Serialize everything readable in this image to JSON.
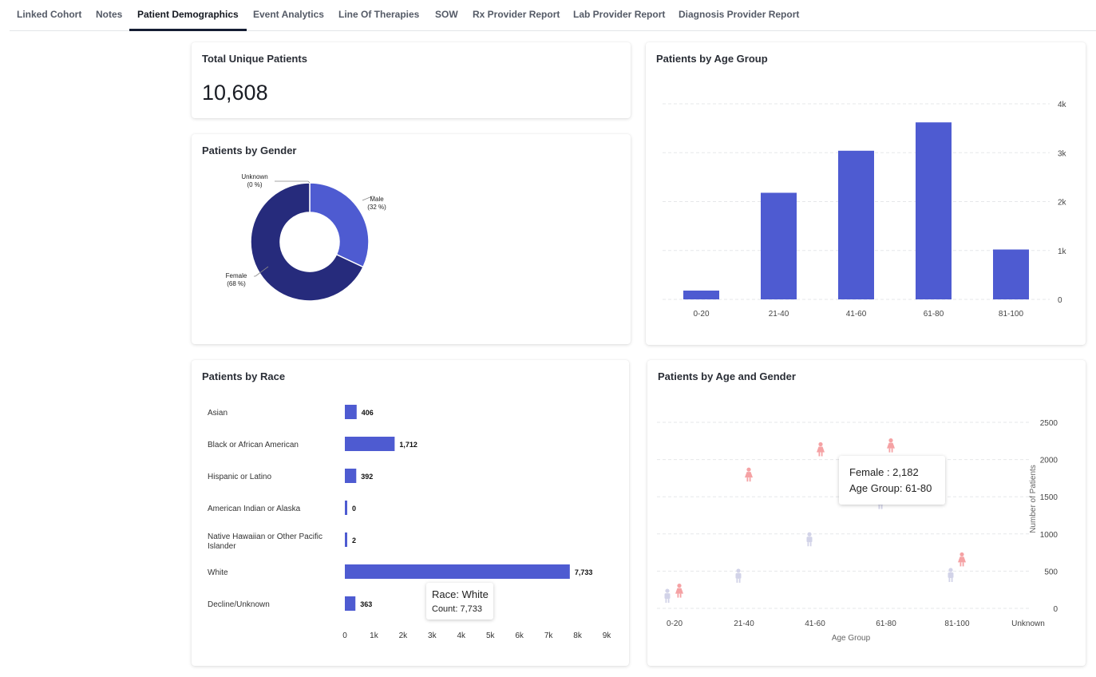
{
  "tabs": [
    {
      "label": "Linked Cohort",
      "active": false
    },
    {
      "label": "Notes",
      "active": false
    },
    {
      "label": "Patient Demographics",
      "active": true
    },
    {
      "label": "Event Analytics",
      "active": false
    },
    {
      "label": "Line Of Therapies",
      "active": false
    },
    {
      "label": "SOW",
      "active": false
    },
    {
      "label": "Rx Provider Report",
      "active": false
    },
    {
      "label": "Lab Provider Report",
      "active": false
    },
    {
      "label": "Diagnosis Provider Report",
      "active": false
    }
  ],
  "total_unique": {
    "title": "Total Unique Patients",
    "value": "10,608"
  },
  "gender_card": {
    "title": "Patients by Gender"
  },
  "age_group_card": {
    "title": "Patients by Age Group"
  },
  "race_card": {
    "title": "Patients by Race"
  },
  "age_gender_card": {
    "title": "Patients by Age and Gender"
  },
  "colors": {
    "bar": "#4e5bd1",
    "female_slice": "#262b7c",
    "male_slice": "#4e5bd1",
    "female_icon": "#f5a2a4",
    "male_icon": "#d2d3e8",
    "grid": "#e6e7ea"
  },
  "chart_data": [
    {
      "type": "pie",
      "donut": true,
      "slices": [
        {
          "label": "Male",
          "pct_label": "(32 %)",
          "value": 32
        },
        {
          "label": "Female",
          "pct_label": "(68 %)",
          "value": 68
        },
        {
          "label": "Unknown",
          "pct_label": "(0 %)",
          "value": 0
        }
      ]
    },
    {
      "type": "bar",
      "categories": [
        "0-20",
        "21-40",
        "41-60",
        "61-80",
        "81-100"
      ],
      "values": [
        180,
        2180,
        3040,
        3620,
        1020
      ],
      "ylim": [
        0,
        4000
      ],
      "yticks": [
        0,
        1000,
        2000,
        3000,
        4000
      ],
      "ytick_labels": [
        "0",
        "1k",
        "2k",
        "3k",
        "4k"
      ],
      "grid": true
    },
    {
      "type": "bar",
      "orientation": "horizontal",
      "categories": [
        "Asian",
        "Black or African American",
        "Hispanic or Latino",
        "American Indian or Alaska",
        "Native Hawaiian or Other Pacific Islander",
        "White",
        "Decline/Unknown"
      ],
      "values": [
        406,
        1712,
        392,
        0,
        2,
        7733,
        363
      ],
      "value_labels": [
        "406",
        "1,712",
        "392",
        "0",
        "2",
        "7,733",
        "363"
      ],
      "xlim": [
        0,
        9000
      ],
      "xticks": [
        0,
        1000,
        2000,
        3000,
        4000,
        5000,
        6000,
        7000,
        8000,
        9000
      ],
      "xtick_labels": [
        "0",
        "1k",
        "2k",
        "3k",
        "4k",
        "5k",
        "6k",
        "7k",
        "8k",
        "9k"
      ],
      "tooltip": {
        "line1": "Race: White",
        "line2": "Count: 7,733"
      }
    },
    {
      "type": "scatter",
      "categories": [
        "0-20",
        "21-40",
        "41-60",
        "61-80",
        "81-100",
        "Unknown"
      ],
      "series": [
        {
          "name": "Female",
          "values": [
            230,
            1790,
            2130,
            2182,
            650,
            null
          ]
        },
        {
          "name": "Male",
          "values": [
            160,
            430,
            920,
            1420,
            440,
            null
          ]
        }
      ],
      "xlabel": "Age Group",
      "ylabel": "Number of Patients",
      "ylim": [
        0,
        2500
      ],
      "yticks": [
        0,
        500,
        1000,
        1500,
        2000,
        2500
      ],
      "ytick_labels": [
        "0",
        "500",
        "1000",
        "1500",
        "2000",
        "2500"
      ],
      "tooltip": {
        "line1": "Female : 2,182",
        "line2": "Age Group: 61-80"
      }
    }
  ]
}
